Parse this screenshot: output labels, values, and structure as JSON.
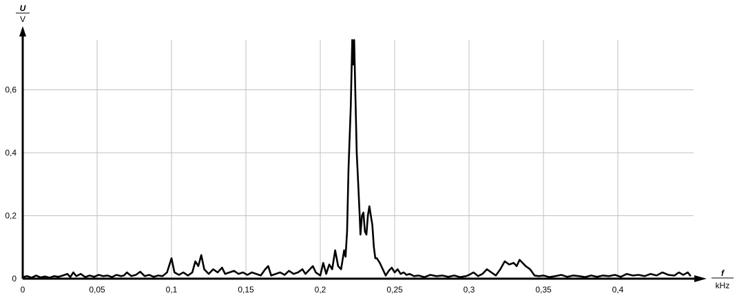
{
  "chart_data": {
    "type": "line",
    "title": "",
    "ylabel": {
      "quantity": "U",
      "unit": "V"
    },
    "xlabel": {
      "quantity": "f",
      "unit": "kHz"
    },
    "xlim": [
      0,
      0.451
    ],
    "ylim": [
      0,
      0.755
    ],
    "grid": true,
    "x_ticks": [
      0,
      0.05,
      0.1,
      0.15,
      0.2,
      0.25,
      0.3,
      0.35,
      0.4
    ],
    "x_tick_labels": [
      "0",
      "0,05",
      "0,1",
      "0,15",
      "0,2",
      "0,25",
      "0,3",
      "0,35",
      "0,4"
    ],
    "y_ticks": [
      0,
      0.2,
      0.4,
      0.6
    ],
    "y_tick_labels": [
      "0",
      "0,2",
      "0,4",
      "0,6"
    ],
    "line_color": "#000000",
    "grid_color": "#c0c0c0",
    "series": [
      {
        "x": [
          0,
          0.003,
          0.006,
          0.009,
          0.012,
          0.015,
          0.018,
          0.021,
          0.024,
          0.027,
          0.03,
          0.032,
          0.034,
          0.036,
          0.039,
          0.042,
          0.045,
          0.048,
          0.051,
          0.054,
          0.057,
          0.06,
          0.063,
          0.066,
          0.068,
          0.07,
          0.073,
          0.076,
          0.079,
          0.082,
          0.085,
          0.088,
          0.091,
          0.094,
          0.097,
          0.1,
          0.102,
          0.105,
          0.108,
          0.111,
          0.114,
          0.116,
          0.118,
          0.12,
          0.122,
          0.125,
          0.128,
          0.131,
          0.134,
          0.136,
          0.139,
          0.142,
          0.145,
          0.148,
          0.151,
          0.154,
          0.157,
          0.16,
          0.163,
          0.165,
          0.167,
          0.17,
          0.173,
          0.176,
          0.179,
          0.182,
          0.185,
          0.188,
          0.19,
          0.192,
          0.195,
          0.197,
          0.2,
          0.202,
          0.204,
          0.206,
          0.208,
          0.21,
          0.212,
          0.214,
          0.216,
          0.217,
          0.218,
          0.219,
          0.2205,
          0.2215,
          0.2222,
          0.2228,
          0.2235,
          0.2245,
          0.2255,
          0.2265,
          0.227,
          0.228,
          0.229,
          0.23,
          0.231,
          0.232,
          0.233,
          0.234,
          0.235,
          0.236,
          0.237,
          0.238,
          0.24,
          0.242,
          0.244,
          0.246,
          0.248,
          0.25,
          0.252,
          0.254,
          0.256,
          0.258,
          0.26,
          0.263,
          0.266,
          0.27,
          0.274,
          0.278,
          0.282,
          0.286,
          0.29,
          0.294,
          0.298,
          0.3,
          0.303,
          0.306,
          0.309,
          0.312,
          0.315,
          0.318,
          0.321,
          0.324,
          0.327,
          0.33,
          0.332,
          0.334,
          0.336,
          0.338,
          0.341,
          0.344,
          0.347,
          0.35,
          0.354,
          0.358,
          0.362,
          0.366,
          0.37,
          0.374,
          0.378,
          0.382,
          0.386,
          0.39,
          0.394,
          0.398,
          0.402,
          0.406,
          0.41,
          0.414,
          0.418,
          0.422,
          0.426,
          0.43,
          0.434,
          0.438,
          0.441,
          0.444,
          0.447,
          0.449
        ],
        "y": [
          0.005,
          0.008,
          0.003,
          0.01,
          0.004,
          0.007,
          0.003,
          0.008,
          0.006,
          0.01,
          0.015,
          0.005,
          0.02,
          0.008,
          0.015,
          0.005,
          0.01,
          0.006,
          0.012,
          0.008,
          0.01,
          0.005,
          0.012,
          0.008,
          0.01,
          0.02,
          0.008,
          0.012,
          0.022,
          0.008,
          0.012,
          0.006,
          0.01,
          0.008,
          0.02,
          0.065,
          0.02,
          0.012,
          0.02,
          0.01,
          0.02,
          0.055,
          0.04,
          0.075,
          0.03,
          0.015,
          0.03,
          0.02,
          0.035,
          0.015,
          0.02,
          0.025,
          0.015,
          0.02,
          0.012,
          0.02,
          0.015,
          0.01,
          0.03,
          0.04,
          0.01,
          0.015,
          0.02,
          0.012,
          0.025,
          0.015,
          0.02,
          0.03,
          0.015,
          0.025,
          0.04,
          0.02,
          0.01,
          0.05,
          0.015,
          0.045,
          0.03,
          0.09,
          0.04,
          0.03,
          0.09,
          0.07,
          0.15,
          0.35,
          0.55,
          0.76,
          0.68,
          0.76,
          0.6,
          0.4,
          0.3,
          0.2,
          0.14,
          0.2,
          0.21,
          0.15,
          0.14,
          0.2,
          0.23,
          0.2,
          0.17,
          0.1,
          0.065,
          0.065,
          0.05,
          0.03,
          0.01,
          0.025,
          0.035,
          0.02,
          0.03,
          0.015,
          0.02,
          0.012,
          0.015,
          0.008,
          0.01,
          0.005,
          0.012,
          0.008,
          0.01,
          0.006,
          0.01,
          0.005,
          0.008,
          0.012,
          0.02,
          0.008,
          0.015,
          0.03,
          0.02,
          0.01,
          0.03,
          0.055,
          0.045,
          0.05,
          0.04,
          0.06,
          0.05,
          0.04,
          0.03,
          0.01,
          0.008,
          0.01,
          0.005,
          0.008,
          0.012,
          0.006,
          0.01,
          0.008,
          0.005,
          0.01,
          0.006,
          0.01,
          0.008,
          0.012,
          0.006,
          0.015,
          0.01,
          0.012,
          0.008,
          0.015,
          0.01,
          0.02,
          0.012,
          0.01,
          0.02,
          0.012,
          0.02,
          0.008
        ]
      }
    ]
  }
}
